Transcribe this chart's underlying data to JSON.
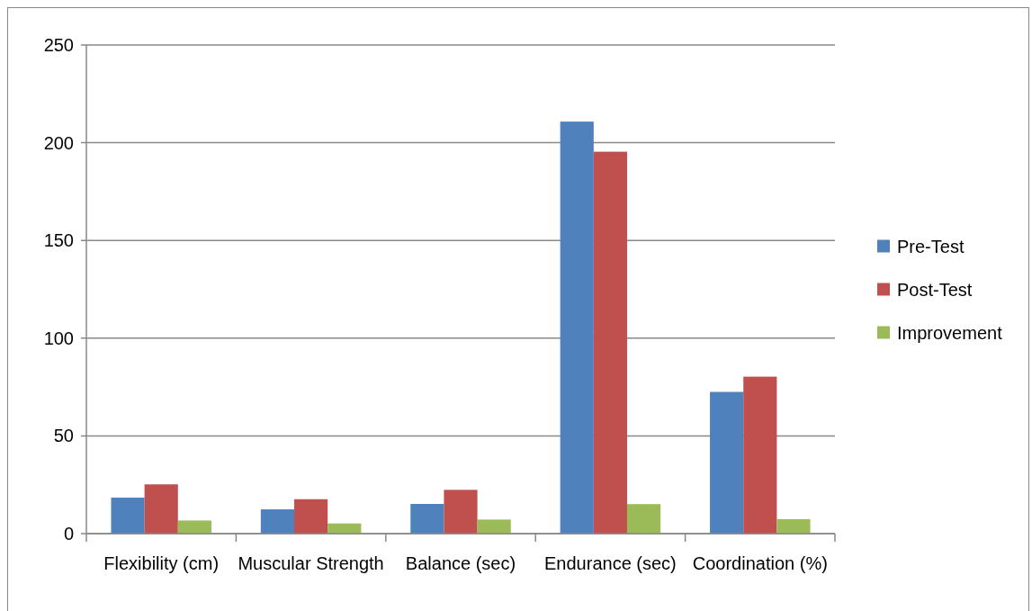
{
  "chart_data": {
    "type": "bar",
    "categories": [
      "Flexibility (cm)",
      "Muscular Strength",
      "Balance (sec)",
      "Endurance (sec)",
      "Coordination (%)"
    ],
    "series": [
      {
        "name": "Pre-Test",
        "color": "#4f81bd",
        "values": [
          18.4,
          12.4,
          15.2,
          210.8,
          72.5
        ]
      },
      {
        "name": "Post-Test",
        "color": "#c0504d",
        "values": [
          25.2,
          17.6,
          22.4,
          195.4,
          80.3
        ]
      },
      {
        "name": "Improvement",
        "color": "#9bbb59",
        "values": [
          6.7,
          5.2,
          7.2,
          15.1,
          7.4
        ]
      }
    ],
    "ylim": [
      0,
      250
    ],
    "yticks": [
      0,
      50,
      100,
      150,
      200,
      250
    ],
    "grid": "y",
    "legend": "right"
  }
}
